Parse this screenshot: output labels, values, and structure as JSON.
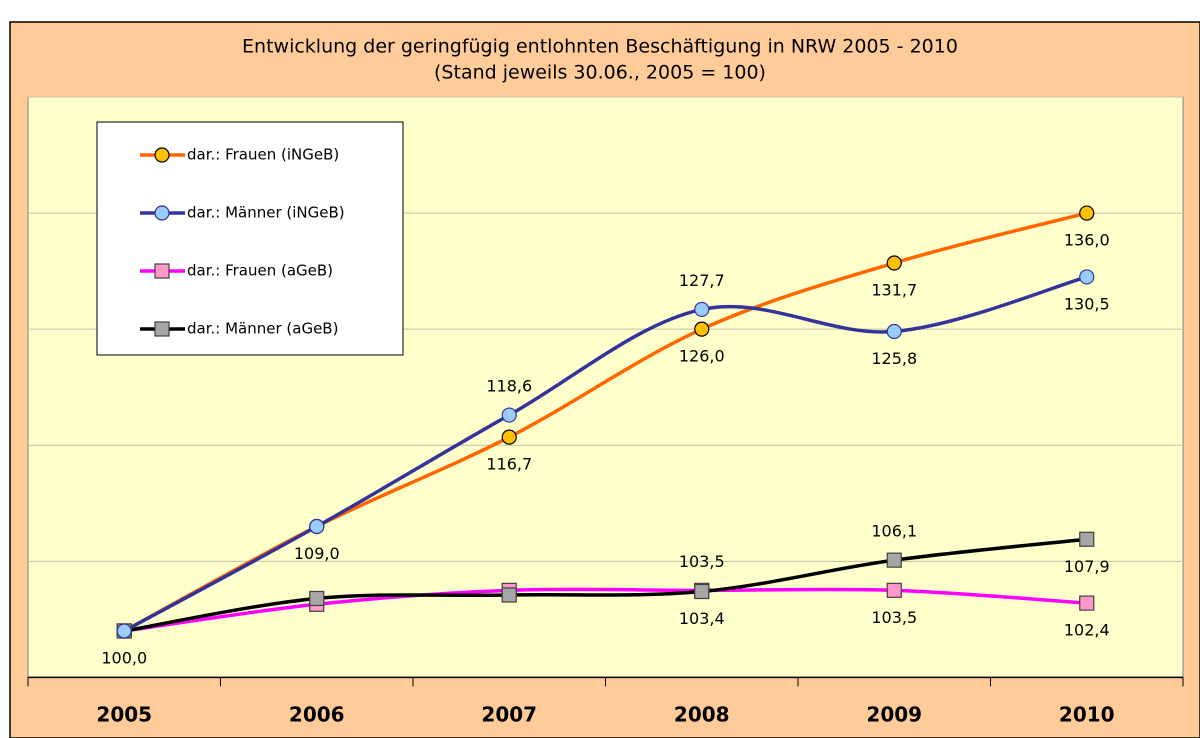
{
  "chart_data": {
    "type": "line",
    "title": "Entwicklung der geringfügig entlohnten Beschäftigung in NRW 2005 - 2010",
    "subtitle": "(Stand jeweils 30.06., 2005 = 100)",
    "categories": [
      "2005",
      "2006",
      "2007",
      "2008",
      "2009",
      "2010"
    ],
    "ylim": [
      96,
      146
    ],
    "yticks": [
      96,
      106,
      116,
      126,
      136,
      146
    ],
    "grid": true,
    "series": [
      {
        "name": "dar.: Frauen (iNGeB)",
        "color": "#ff6600",
        "marker": "circle",
        "marker_color": "#ffc000",
        "values": [
          100.0,
          109.0,
          116.7,
          126.0,
          131.7,
          136.0
        ],
        "value_labels": [
          "100,0",
          "109,0",
          "116,7",
          "126,0",
          "131,7",
          "136,0"
        ]
      },
      {
        "name": "dar.: Männer  (iNGeB)",
        "color": "#333399",
        "marker": "circle",
        "marker_color": "#99ccff",
        "values": [
          100.0,
          109.0,
          118.6,
          127.7,
          125.8,
          130.5
        ],
        "value_labels": [
          null,
          null,
          "118,6",
          "127,7",
          "125,8",
          "130,5"
        ]
      },
      {
        "name": "dar.: Frauen (aGeB)",
        "color": "#ff00ff",
        "marker": "square",
        "marker_color": "#ff99cc",
        "values": [
          100.0,
          102.3,
          103.5,
          103.5,
          103.5,
          102.4
        ],
        "value_labels": [
          null,
          null,
          null,
          "103,5",
          "103,5",
          "102,4"
        ]
      },
      {
        "name": "dar.: Männer (aGeB)",
        "color": "#000000",
        "marker": "square",
        "marker_color": "#a6a6a6",
        "values": [
          100.0,
          102.8,
          103.1,
          103.4,
          106.1,
          107.9
        ],
        "value_labels": [
          null,
          null,
          null,
          "103,4",
          "106,1",
          "107,9"
        ]
      }
    ]
  }
}
